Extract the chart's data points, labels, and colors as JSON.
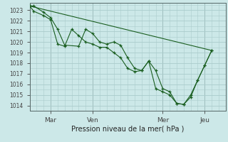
{
  "title": "Pression niveau de la mer( hPa )",
  "ylabel_values": [
    1014,
    1015,
    1016,
    1017,
    1018,
    1019,
    1020,
    1021,
    1022,
    1023
  ],
  "ylim": [
    1013.5,
    1023.7
  ],
  "xlim": [
    0,
    14
  ],
  "xtick_positions": [
    1.5,
    4.5,
    9.5,
    12.5
  ],
  "xtick_labels": [
    "Mar",
    "Ven",
    "Mer",
    "Jeu"
  ],
  "vline_positions": [
    1.5,
    4.5,
    9.5,
    12.5
  ],
  "bg_color": "#cce8e8",
  "grid_color": "#aacccc",
  "line_color": "#1a5e20",
  "series1_x": [
    0,
    0.3,
    1.0,
    1.5,
    2.0,
    2.5,
    3.5,
    4.0,
    4.5,
    5.0,
    5.5,
    6.0,
    6.5,
    7.0,
    7.5,
    8.0,
    8.5,
    9.0,
    9.5,
    10.0,
    10.5,
    11.0,
    11.5,
    12.0,
    12.5,
    13.0
  ],
  "series1_y": [
    1023.4,
    1023.4,
    1022.8,
    1022.3,
    1021.2,
    1019.7,
    1019.6,
    1021.2,
    1020.8,
    1020.0,
    1019.8,
    1020.0,
    1019.7,
    1018.5,
    1017.5,
    1017.3,
    1018.2,
    1017.3,
    1015.6,
    1015.3,
    1014.2,
    1014.1,
    1014.8,
    1016.4,
    1017.8,
    1019.2
  ],
  "series2_x": [
    0,
    0.3,
    1.0,
    1.5,
    2.0,
    2.5,
    3.0,
    3.5,
    4.0,
    4.5,
    5.0,
    5.5,
    6.0,
    6.5,
    7.0,
    7.5,
    8.0,
    8.5,
    9.0,
    9.5,
    10.0,
    10.5,
    11.0,
    11.5,
    12.0,
    12.5,
    13.0
  ],
  "series2_y": [
    1023.4,
    1022.9,
    1022.5,
    1022.1,
    1019.8,
    1019.6,
    1021.2,
    1020.6,
    1020.0,
    1019.8,
    1019.5,
    1019.5,
    1019.0,
    1018.5,
    1017.5,
    1017.2,
    1017.3,
    1018.2,
    1015.6,
    1015.3,
    1015.0,
    1014.2,
    1014.1,
    1015.0,
    1016.4,
    1017.8,
    1019.2
  ],
  "series3_x": [
    0,
    13.0
  ],
  "series3_y": [
    1023.4,
    1019.2
  ],
  "marker": "+",
  "markersize": 3.5,
  "markeredgewidth": 0.9,
  "linewidth": 0.8
}
